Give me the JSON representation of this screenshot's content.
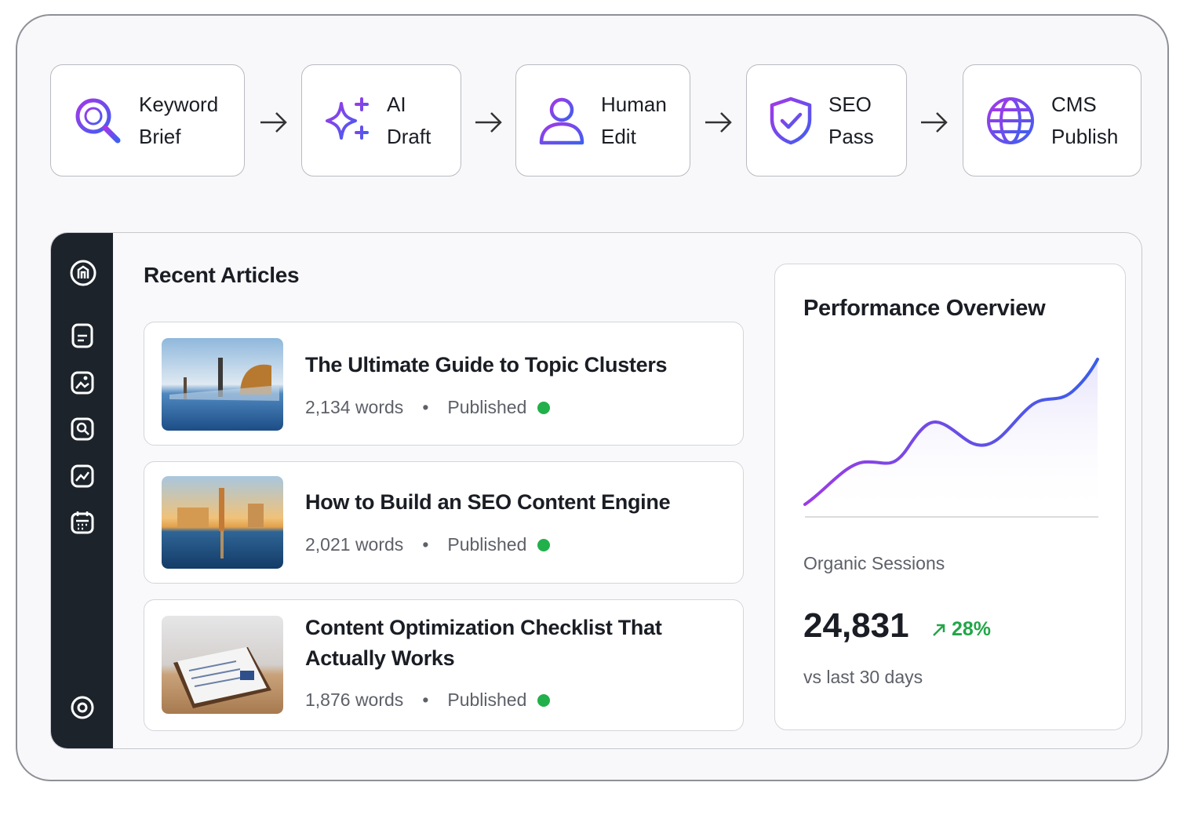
{
  "pipeline": {
    "steps": [
      {
        "label": "Keyword Brief"
      },
      {
        "label": "AI Draft"
      },
      {
        "label": "Human Edit"
      },
      {
        "label": "SEO Pass"
      },
      {
        "label": "CMS Publish"
      }
    ]
  },
  "articles": {
    "heading": "Recent Articles",
    "items": [
      {
        "title": "The Ultimate Guide to Topic Clusters",
        "words": "2,134 words",
        "status": "Published"
      },
      {
        "title": "How to Build an SEO Content Engine",
        "words": "2,021 words",
        "status": "Published"
      },
      {
        "title": "Content Optimization Checklist That Actually Works",
        "words": "1,876 words",
        "status": "Published"
      }
    ]
  },
  "performance": {
    "title": "Performance Overview",
    "metric_label": "Organic Sessions",
    "metric_value": "24,831",
    "change": "28%",
    "comparison": "vs last 30 days"
  }
}
